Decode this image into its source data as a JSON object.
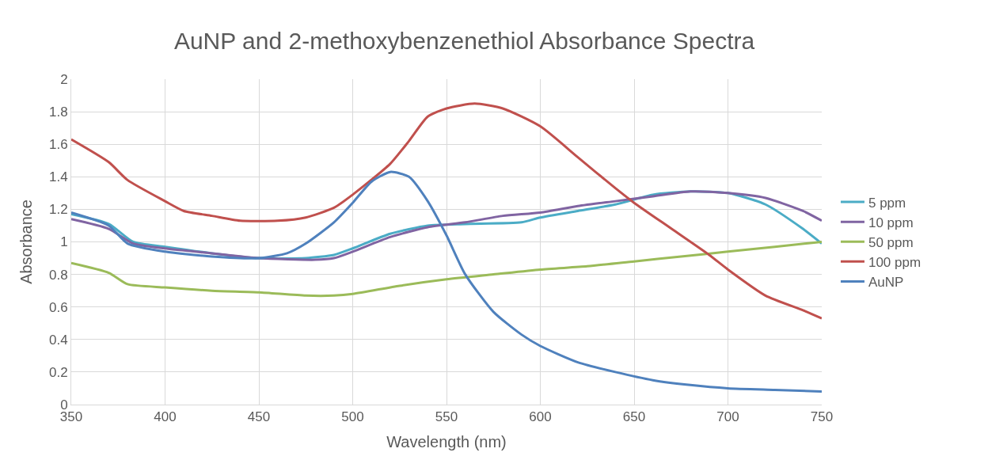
{
  "chart_data": {
    "type": "line",
    "title": "AuNP and 2-methoxybenzenethiol Absorbance Spectra",
    "xlabel": "Wavelength (nm)",
    "ylabel": "Absorbance",
    "xlim": [
      350,
      750
    ],
    "xticks": [
      350,
      400,
      450,
      500,
      550,
      600,
      650,
      700,
      750
    ],
    "ylim": [
      0,
      2
    ],
    "yticks": [
      0,
      0.2,
      0.4,
      0.6,
      0.8,
      1,
      1.2,
      1.4,
      1.6,
      1.8,
      2
    ],
    "grid": true,
    "legend": "right",
    "marker": "none",
    "line_style": "solid",
    "series": [
      {
        "name": "5 ppm",
        "color": "#4bacc6",
        "x": [
          350,
          370,
          383,
          400,
          425,
          450,
          475,
          490,
          500,
          520,
          540,
          560,
          590,
          600,
          620,
          640,
          660,
          680,
          700,
          720,
          740,
          750
        ],
        "values": [
          1.17,
          1.11,
          1.0,
          0.97,
          0.93,
          0.9,
          0.9,
          0.92,
          0.96,
          1.05,
          1.1,
          1.11,
          1.12,
          1.15,
          1.19,
          1.23,
          1.29,
          1.31,
          1.3,
          1.23,
          1.08,
          0.99
        ]
      },
      {
        "name": "10 ppm",
        "color": "#8064a2",
        "x": [
          350,
          370,
          383,
          400,
          425,
          450,
          480,
          490,
          500,
          520,
          540,
          560,
          580,
          600,
          620,
          640,
          660,
          680,
          700,
          720,
          740,
          750
        ],
        "values": [
          1.14,
          1.08,
          0.99,
          0.96,
          0.93,
          0.9,
          0.89,
          0.9,
          0.94,
          1.03,
          1.09,
          1.12,
          1.16,
          1.18,
          1.22,
          1.25,
          1.28,
          1.31,
          1.3,
          1.27,
          1.19,
          1.13
        ]
      },
      {
        "name": "50 ppm",
        "color": "#9bbb59",
        "x": [
          350,
          370,
          380,
          400,
          425,
          450,
          475,
          490,
          500,
          525,
          550,
          575,
          600,
          625,
          650,
          675,
          700,
          725,
          750
        ],
        "values": [
          0.87,
          0.81,
          0.74,
          0.72,
          0.7,
          0.69,
          0.67,
          0.67,
          0.68,
          0.73,
          0.77,
          0.8,
          0.83,
          0.85,
          0.88,
          0.91,
          0.94,
          0.97,
          1.0
        ]
      },
      {
        "name": "100 ppm",
        "color": "#c0504d",
        "x": [
          350,
          370,
          380,
          400,
          410,
          425,
          440,
          460,
          475,
          490,
          500,
          520,
          530,
          540,
          550,
          565,
          580,
          600,
          620,
          640,
          650,
          670,
          690,
          700,
          720,
          740,
          750
        ],
        "values": [
          1.63,
          1.49,
          1.38,
          1.25,
          1.19,
          1.16,
          1.13,
          1.13,
          1.15,
          1.21,
          1.29,
          1.48,
          1.62,
          1.77,
          1.82,
          1.85,
          1.82,
          1.71,
          1.52,
          1.33,
          1.24,
          1.08,
          0.92,
          0.83,
          0.67,
          0.58,
          0.53
        ]
      },
      {
        "name": "AuNP",
        "color": "#4f81bd",
        "x": [
          350,
          370,
          380,
          400,
          425,
          450,
          465,
          475,
          490,
          500,
          510,
          520,
          530,
          540,
          550,
          560,
          575,
          590,
          600,
          620,
          640,
          660,
          680,
          700,
          725,
          750
        ],
        "values": [
          1.18,
          1.1,
          0.99,
          0.94,
          0.91,
          0.9,
          0.93,
          0.99,
          1.12,
          1.24,
          1.37,
          1.43,
          1.4,
          1.25,
          1.04,
          0.8,
          0.57,
          0.43,
          0.36,
          0.26,
          0.2,
          0.15,
          0.12,
          0.1,
          0.09,
          0.08
        ]
      }
    ]
  }
}
